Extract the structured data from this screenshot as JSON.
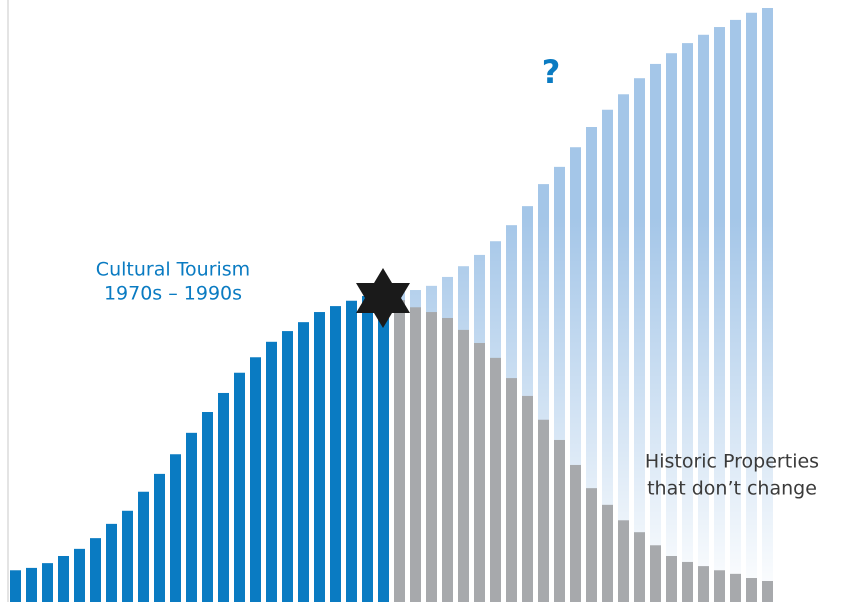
{
  "chart_data": {
    "type": "bar",
    "categories": [
      null,
      null,
      null,
      null,
      null,
      null,
      null,
      null,
      null,
      null,
      null,
      null,
      null,
      null,
      null,
      null,
      null,
      null,
      null,
      null,
      null,
      null,
      null,
      null,
      null,
      null,
      null,
      null,
      null,
      null,
      null,
      null,
      null,
      null,
      null,
      null,
      null,
      null,
      null,
      null,
      null,
      null,
      null,
      null,
      null,
      null,
      null,
      null
    ],
    "ylim": [
      0,
      100
    ],
    "series": [
      {
        "color": "#0a7bc2",
        "values": [
          5.5,
          5.9,
          6.7,
          7.9,
          9.1,
          10.9,
          13.3,
          15.5,
          18.7,
          21.7,
          25.0,
          28.6,
          32.1,
          35.3,
          38.7,
          41.3,
          43.9,
          45.7,
          47.2,
          48.9,
          49.9,
          50.8,
          51.6,
          52.3,
          null,
          null,
          null,
          null,
          null,
          null,
          null,
          null,
          null,
          null,
          null,
          null,
          null,
          null,
          null,
          null,
          null,
          null,
          null,
          null,
          null,
          null,
          null,
          null
        ]
      },
      {
        "color": "#a4c6e8",
        "values": [
          null,
          null,
          null,
          null,
          null,
          null,
          null,
          null,
          null,
          null,
          null,
          null,
          null,
          null,
          null,
          null,
          null,
          null,
          null,
          null,
          null,
          null,
          null,
          null,
          52.3,
          52.6,
          53.3,
          54.8,
          56.6,
          58.5,
          60.8,
          63.5,
          66.7,
          70.4,
          73.3,
          76.6,
          80.0,
          82.9,
          85.5,
          88.2,
          90.6,
          92.4,
          94.1,
          95.5,
          96.8,
          98.0,
          99.2,
          100
        ]
      },
      {
        "color": "#a7a9ac",
        "values": [
          null,
          null,
          null,
          null,
          null,
          null,
          null,
          null,
          null,
          null,
          null,
          null,
          null,
          null,
          null,
          null,
          null,
          null,
          null,
          null,
          null,
          null,
          null,
          null,
          50.9,
          49.7,
          48.9,
          47.9,
          45.9,
          43.7,
          41.2,
          37.8,
          34.8,
          30.8,
          27.4,
          23.2,
          19.3,
          16.5,
          13.9,
          11.9,
          9.7,
          7.9,
          6.9,
          6.2,
          5.5,
          4.9,
          4.2,
          3.7
        ]
      }
    ],
    "annotations": [
      {
        "lines": [
          "Cultural Tourism",
          "1970s – 1990s"
        ],
        "color": "#0a7bc2"
      },
      {
        "lines": [
          "?"
        ],
        "color": "#0a7bc2"
      },
      {
        "lines": [
          "Historic Properties",
          "that don’t change"
        ],
        "color": "#3a3a3a"
      }
    ]
  }
}
